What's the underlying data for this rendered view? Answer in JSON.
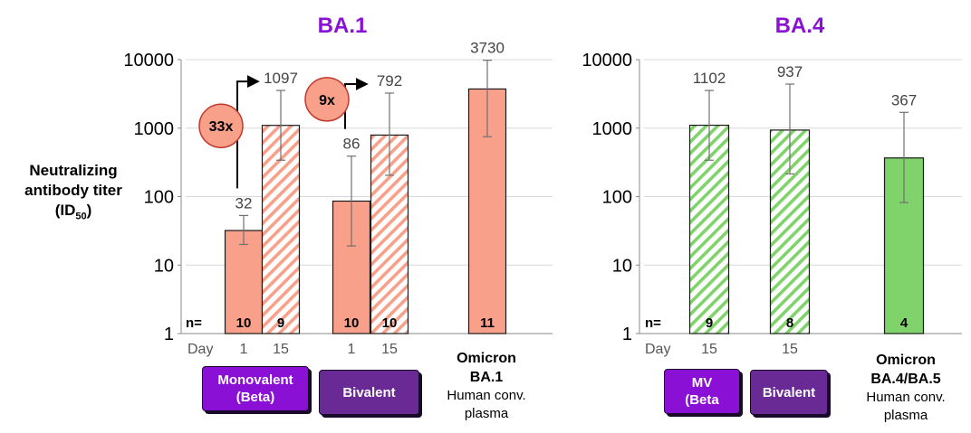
{
  "chart_data": [
    {
      "type": "bar",
      "title": "BA.1",
      "ylabel_line1": "Neutralizing",
      "ylabel_line2": "antibody titer",
      "ylabel_line3": "(ID",
      "ylabel_sub": "50",
      "ylabel_close": ")",
      "yscale": "log",
      "ylim": [
        1,
        10000
      ],
      "yticks": [
        "1",
        "10",
        "100",
        "1000",
        "10000"
      ],
      "grid": true,
      "n_prefix": "n=",
      "day_prefix": "Day",
      "bars": [
        {
          "day": "1",
          "value": 32,
          "label": "32",
          "err_low": 20,
          "err_high": 53,
          "n": "10",
          "pattern": "solid",
          "color": "#f8a08a"
        },
        {
          "day": "15",
          "value": 1097,
          "label": "1097",
          "err_low": 340,
          "err_high": 3550,
          "n": "9",
          "pattern": "hatched",
          "color": "#f8a08a"
        },
        {
          "day": "1",
          "value": 86,
          "label": "86",
          "err_low": 19,
          "err_high": 390,
          "n": "10",
          "pattern": "solid",
          "color": "#f8a08a"
        },
        {
          "day": "15",
          "value": 792,
          "label": "792",
          "err_low": 205,
          "err_high": 3250,
          "n": "10",
          "pattern": "hatched",
          "color": "#f8a08a"
        },
        {
          "day": "",
          "value": 3730,
          "label": "3730",
          "err_low": 750,
          "err_high": 9800,
          "n": "11",
          "pattern": "solid",
          "color": "#f8a08a"
        }
      ],
      "fold_annotations": [
        {
          "label": "33x",
          "from_bar": 0,
          "to_bar": 1
        },
        {
          "label": "9x",
          "from_bar": 2,
          "to_bar": 3
        }
      ],
      "groups": [
        {
          "badge_line1": "Monovalent",
          "badge_line2": "(Beta)",
          "style": "violet"
        },
        {
          "badge_line1": "Bivalent",
          "badge_line2": "",
          "style": "purple"
        },
        {
          "label_line1": "Omicron",
          "label_line2": "BA.1",
          "label_line3": "Human conv.",
          "label_line4": "plasma"
        }
      ]
    },
    {
      "type": "bar",
      "title": "BA.4",
      "yscale": "log",
      "ylim": [
        1,
        10000
      ],
      "yticks": [
        "1",
        "10",
        "100",
        "1000",
        "10000"
      ],
      "grid": true,
      "n_prefix": "n=",
      "day_prefix": "Day",
      "bars": [
        {
          "day": "15",
          "value": 1102,
          "label": "1102",
          "err_low": 340,
          "err_high": 3550,
          "n": "9",
          "pattern": "hatched",
          "color": "#7fd36a"
        },
        {
          "day": "15",
          "value": 937,
          "label": "937",
          "err_low": 215,
          "err_high": 4400,
          "n": "8",
          "pattern": "hatched",
          "color": "#7fd36a"
        },
        {
          "day": "",
          "value": 367,
          "label": "367",
          "err_low": 82,
          "err_high": 1700,
          "n": "4",
          "pattern": "solid",
          "color": "#7fd36a"
        }
      ],
      "groups": [
        {
          "badge_line1": "MV",
          "badge_line2": "(Beta",
          "style": "violet"
        },
        {
          "badge_line1": "Bivalent",
          "badge_line2": "",
          "style": "purple"
        },
        {
          "label_line1": "Omicron",
          "label_line2": "BA.4/BA.5",
          "label_line3": "Human conv.",
          "label_line4": "plasma"
        }
      ]
    }
  ]
}
